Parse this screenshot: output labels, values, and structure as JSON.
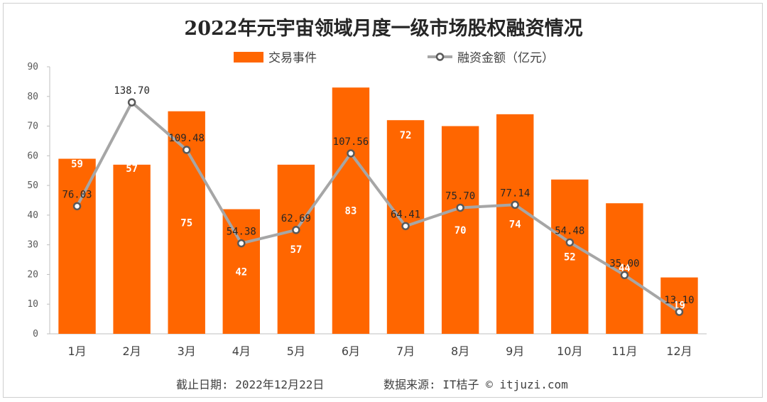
{
  "chart_data": {
    "type": "bar",
    "title": "2022年元宇宙领域月度一级市场股权融资情况",
    "categories": [
      "1月",
      "2月",
      "3月",
      "4月",
      "5月",
      "6月",
      "7月",
      "8月",
      "9月",
      "10月",
      "11月",
      "12月"
    ],
    "series": [
      {
        "name": "交易事件",
        "type": "bar",
        "color": "#FF6600",
        "values": [
          59,
          57,
          75,
          42,
          57,
          83,
          72,
          70,
          74,
          52,
          44,
          19
        ]
      },
      {
        "name": "融资金额（亿元）",
        "type": "line",
        "color": "#A6A6A6",
        "values": [
          76.03,
          138.7,
          109.48,
          54.38,
          62.69,
          107.56,
          64.41,
          75.7,
          77.14,
          54.48,
          35.0,
          13.1
        ],
        "labels": [
          "76.03",
          "138.70",
          "109.48",
          "54.38",
          "62.69",
          "107.56",
          "64.41",
          "75.70",
          "77.14",
          "54.48",
          "35.00",
          "13.10"
        ],
        "plot_values": [
          43,
          78,
          62,
          30.5,
          35,
          60.8,
          36.3,
          42.5,
          43.5,
          30.8,
          19.8,
          7.4
        ]
      }
    ],
    "ylim": [
      0,
      90
    ],
    "yticks": [
      0,
      10,
      20,
      30,
      40,
      50,
      60,
      70,
      80,
      90
    ],
    "xlabel": "",
    "ylabel": "",
    "legend_position": "top"
  },
  "footer": {
    "date_text": "截止日期: 2022年12月22日",
    "source_text": "数据来源: IT桔子 © itjuzi.com"
  }
}
